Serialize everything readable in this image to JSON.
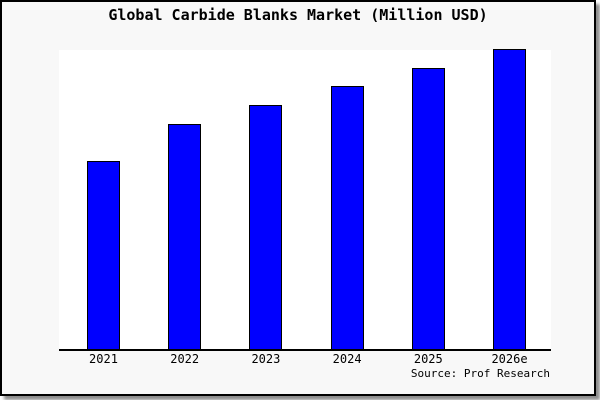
{
  "chart_data": {
    "type": "bar",
    "title": "Global Carbide Blanks Market (Million USD)",
    "categories": [
      "2021",
      "2022",
      "2023",
      "2024",
      "2025",
      "2026e"
    ],
    "values": [
      62.5,
      75,
      81.3,
      87.6,
      93.6,
      100
    ],
    "values_are_relative": true,
    "ylim": [
      0,
      100
    ],
    "xlabel": "",
    "ylabel": "",
    "grid": false,
    "legend": "none",
    "y_axis_shown": false,
    "bar_color": "#0000FF",
    "bar_border_color": "#000000",
    "source_caption": "Source: Prof Research"
  },
  "colors": {
    "card_background": "#F8F8F8",
    "plot_background": "#FFFFFF",
    "frame_border": "#000000",
    "shadow": "#999999",
    "text": "#000000"
  }
}
